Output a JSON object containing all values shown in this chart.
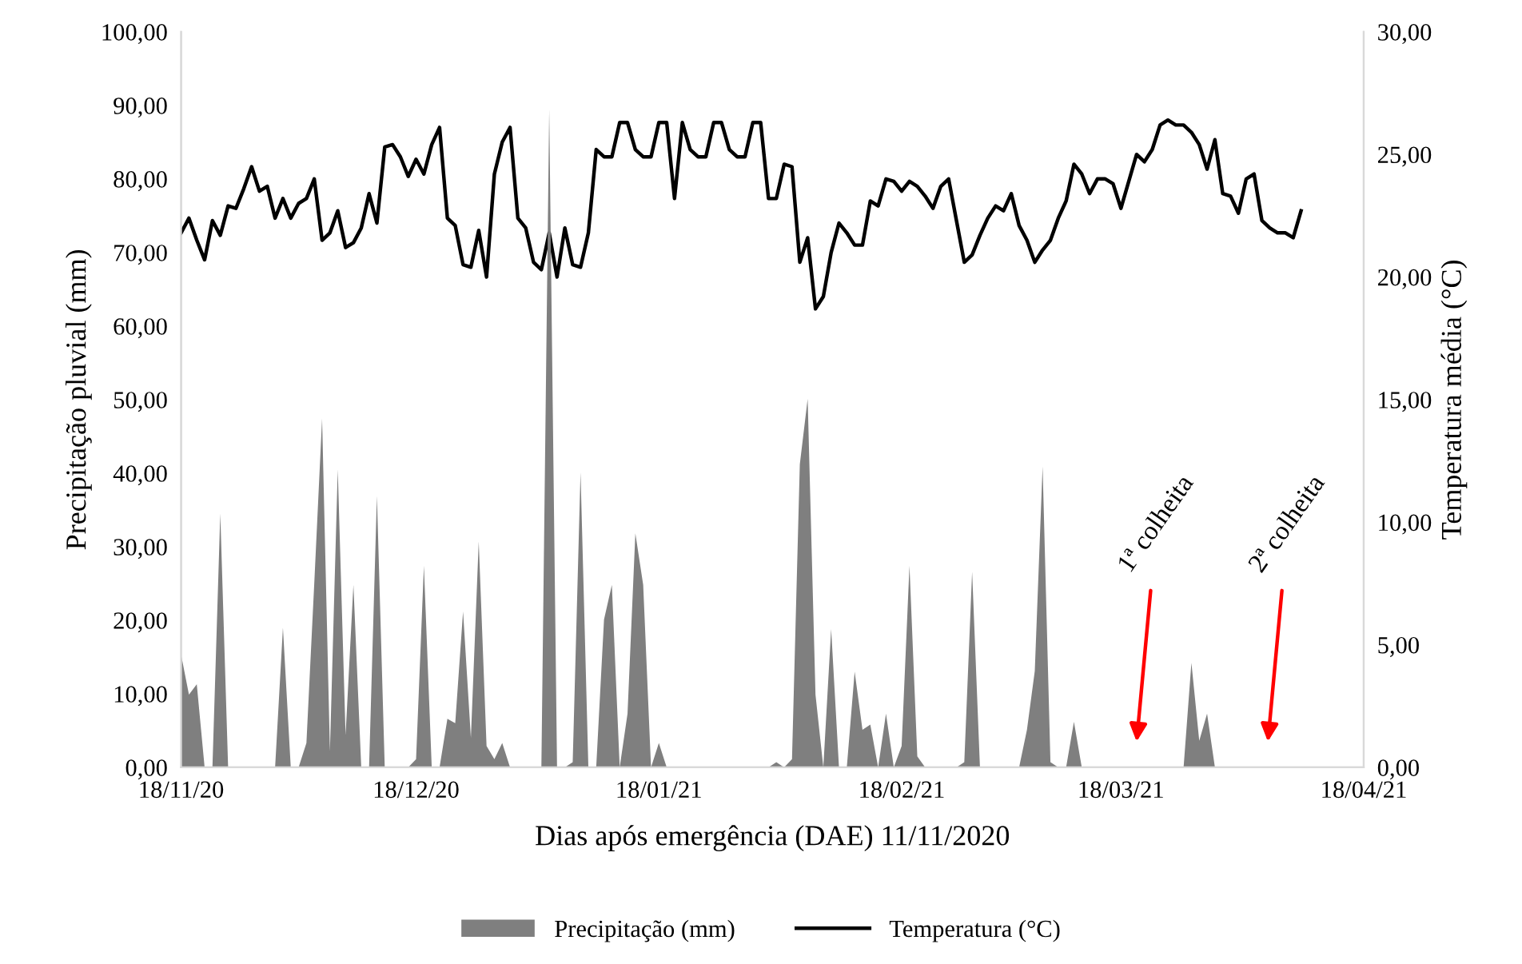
{
  "chart_data": {
    "type": "area",
    "xlabel": "Dias após emergência (DAE) 11/11/2020",
    "ylabel": "Precipitação pluvial (mm)",
    "y2label": "Temperatura média (°C)",
    "x": [
      "2020-11-18",
      "2020-11-19",
      "2020-11-20",
      "2020-11-21",
      "2020-11-22",
      "2020-11-23",
      "2020-11-24",
      "2020-11-25",
      "2020-11-26",
      "2020-11-27",
      "2020-11-28",
      "2020-11-29",
      "2020-11-30",
      "2020-12-01",
      "2020-12-02",
      "2020-12-03",
      "2020-12-04",
      "2020-12-05",
      "2020-12-06",
      "2020-12-07",
      "2020-12-08",
      "2020-12-09",
      "2020-12-10",
      "2020-12-11",
      "2020-12-12",
      "2020-12-13",
      "2020-12-14",
      "2020-12-15",
      "2020-12-16",
      "2020-12-17",
      "2020-12-18",
      "2020-12-19",
      "2020-12-20",
      "2020-12-21",
      "2020-12-22",
      "2020-12-23",
      "2020-12-24",
      "2020-12-25",
      "2020-12-26",
      "2020-12-27",
      "2020-12-28",
      "2020-12-29",
      "2020-12-30",
      "2020-12-31",
      "2021-01-01",
      "2021-01-02",
      "2021-01-03",
      "2021-01-04",
      "2021-01-05",
      "2021-01-06",
      "2021-01-07",
      "2021-01-08",
      "2021-01-09",
      "2021-01-10",
      "2021-01-11",
      "2021-01-12",
      "2021-01-13",
      "2021-01-14",
      "2021-01-15",
      "2021-01-16",
      "2021-01-17",
      "2021-01-18",
      "2021-01-19",
      "2021-01-20",
      "2021-01-21",
      "2021-01-22",
      "2021-01-23",
      "2021-01-24",
      "2021-01-25",
      "2021-01-26",
      "2021-01-27",
      "2021-01-28",
      "2021-01-29",
      "2021-01-30",
      "2021-01-31",
      "2021-02-01",
      "2021-02-02",
      "2021-02-03",
      "2021-02-04",
      "2021-02-05",
      "2021-02-06",
      "2021-02-07",
      "2021-02-08",
      "2021-02-09",
      "2021-02-10",
      "2021-02-11",
      "2021-02-12",
      "2021-02-13",
      "2021-02-14",
      "2021-02-15",
      "2021-02-16",
      "2021-02-17",
      "2021-02-18",
      "2021-02-19",
      "2021-02-20",
      "2021-02-21",
      "2021-02-22",
      "2021-02-23",
      "2021-02-24",
      "2021-02-25",
      "2021-02-26",
      "2021-02-27",
      "2021-02-28",
      "2021-03-01",
      "2021-03-02",
      "2021-03-03",
      "2021-03-04",
      "2021-03-05",
      "2021-03-06",
      "2021-03-07",
      "2021-03-08",
      "2021-03-09",
      "2021-03-10",
      "2021-03-11",
      "2021-03-12",
      "2021-03-13",
      "2021-03-14",
      "2021-03-15",
      "2021-03-16",
      "2021-03-17",
      "2021-03-18",
      "2021-03-19",
      "2021-03-20",
      "2021-03-21",
      "2021-03-22",
      "2021-03-23",
      "2021-03-24",
      "2021-03-25",
      "2021-03-26",
      "2021-03-27",
      "2021-03-28",
      "2021-03-29",
      "2021-03-30",
      "2021-03-31",
      "2021-04-01",
      "2021-04-02",
      "2021-04-03",
      "2021-04-04",
      "2021-04-05",
      "2021-04-06",
      "2021-04-07",
      "2021-04-08",
      "2021-04-09",
      "2021-04-10"
    ],
    "series": [
      {
        "name": "Precipitação (mm)",
        "color": "#7f7f7f",
        "values": [
          15.3,
          9.9,
          11.3,
          0,
          0,
          34.5,
          0,
          0,
          0,
          0,
          0,
          0,
          0,
          19.0,
          0,
          0,
          3.3,
          25,
          47.4,
          2.2,
          40.5,
          4.4,
          24.8,
          0,
          0,
          36.9,
          0,
          0,
          0,
          0,
          1.1,
          27.4,
          0,
          0,
          6.6,
          6.0,
          21.2,
          4.0,
          30.7,
          2.9,
          1.1,
          3.3,
          0,
          0,
          0,
          0,
          0,
          89.5,
          0,
          0,
          0.7,
          40.1,
          0,
          0,
          20.1,
          24.8,
          0,
          7.3,
          31.8,
          24.8,
          0,
          3.3,
          0,
          0,
          0,
          0,
          0,
          0,
          0,
          0,
          0,
          0,
          0,
          0,
          0,
          0,
          0.7,
          0,
          1.1,
          41.2,
          50.1,
          9.9,
          0,
          18.8,
          0,
          0,
          13.0,
          5.1,
          5.8,
          0,
          7.3,
          0,
          2.9,
          27.4,
          1.5,
          0,
          0,
          0,
          0,
          0,
          0.7,
          26.6,
          0,
          0,
          0,
          0,
          0,
          0,
          5.1,
          13.1,
          40.9,
          0.7,
          0,
          0,
          6.2,
          0,
          0,
          0,
          0,
          0,
          0,
          0,
          0,
          0,
          0,
          0,
          0,
          0,
          0,
          14.2,
          3.6,
          7.3,
          0,
          0,
          0,
          0,
          0,
          0,
          0,
          0,
          0,
          0,
          0,
          0
        ]
      },
      {
        "name": "Temperatura (°C)",
        "type": "line",
        "axis": "y2",
        "color": "#000000",
        "values": [
          21.8,
          22.4,
          21.5,
          20.7,
          22.3,
          21.7,
          22.9,
          22.8,
          23.6,
          24.5,
          23.5,
          23.7,
          22.4,
          23.2,
          22.4,
          23.0,
          23.2,
          24.0,
          21.5,
          21.8,
          22.7,
          21.2,
          21.4,
          22.0,
          23.4,
          22.2,
          25.3,
          25.4,
          24.9,
          24.1,
          24.8,
          24.2,
          25.4,
          26.1,
          22.4,
          22.1,
          20.5,
          20.4,
          21.9,
          20.0,
          24.2,
          25.5,
          26.1,
          22.4,
          22.0,
          20.6,
          20.3,
          21.8,
          20.0,
          22.0,
          20.5,
          20.4,
          21.8,
          25.2,
          24.9,
          24.9,
          26.3,
          26.3,
          25.2,
          24.9,
          24.9,
          26.3,
          26.3,
          23.2,
          26.3,
          25.2,
          24.9,
          24.9,
          26.3,
          26.3,
          25.2,
          24.9,
          24.9,
          26.3,
          26.3,
          23.2,
          23.2,
          24.6,
          24.5,
          20.6,
          21.6,
          18.7,
          19.2,
          21.0,
          22.2,
          21.8,
          21.3,
          21.3,
          23.1,
          22.9,
          24.0,
          23.9,
          23.5,
          23.9,
          23.7,
          23.3,
          22.8,
          23.7,
          24.0,
          22.3,
          20.6,
          20.9,
          21.7,
          22.4,
          22.9,
          22.7,
          23.4,
          22.1,
          21.5,
          20.6,
          21.1,
          21.5,
          22.4,
          23.1,
          24.6,
          24.2,
          23.4,
          24.0,
          24.0,
          23.8,
          22.8,
          23.9,
          25.0,
          24.7,
          25.2,
          26.2,
          26.4,
          26.2,
          26.2,
          25.9,
          25.4,
          24.4,
          25.6,
          23.4,
          23.3,
          22.6,
          24.0,
          24.2,
          22.3,
          22.0,
          21.8,
          21.8,
          21.6,
          22.7
        ]
      }
    ],
    "xlim": [
      "2020-11-18",
      "2021-04-18"
    ],
    "xticks": [
      {
        "value": "2020-11-18",
        "label": "18/11/20"
      },
      {
        "value": "2020-12-18",
        "label": "18/12/20"
      },
      {
        "value": "2021-01-18",
        "label": "18/01/21"
      },
      {
        "value": "2021-02-18",
        "label": "18/02/21"
      },
      {
        "value": "2021-03-18",
        "label": "18/03/21"
      },
      {
        "value": "2021-04-18",
        "label": "18/04/21"
      }
    ],
    "ylim": [
      0,
      100
    ],
    "yticks": [
      {
        "value": 0,
        "label": "0,00"
      },
      {
        "value": 10,
        "label": "10,00"
      },
      {
        "value": 20,
        "label": "20,00"
      },
      {
        "value": 30,
        "label": "30,00"
      },
      {
        "value": 40,
        "label": "40,00"
      },
      {
        "value": 50,
        "label": "50,00"
      },
      {
        "value": 60,
        "label": "60,00"
      },
      {
        "value": 70,
        "label": "70,00"
      },
      {
        "value": 80,
        "label": "80,00"
      },
      {
        "value": 90,
        "label": "90,00"
      },
      {
        "value": 100,
        "label": "100,00"
      }
    ],
    "y2lim": [
      0,
      30
    ],
    "y2ticks": [
      {
        "value": 0,
        "label": "0,00"
      },
      {
        "value": 5,
        "label": "5,00"
      },
      {
        "value": 10,
        "label": "10,00"
      },
      {
        "value": 15,
        "label": "15,00"
      },
      {
        "value": 20,
        "label": "20,00"
      },
      {
        "value": 25,
        "label": "25,00"
      },
      {
        "value": 30,
        "label": "30,00"
      }
    ],
    "annotations": [
      "1ª colheita",
      "2ª colheita"
    ],
    "legend": "bottom",
    "grid": false
  }
}
